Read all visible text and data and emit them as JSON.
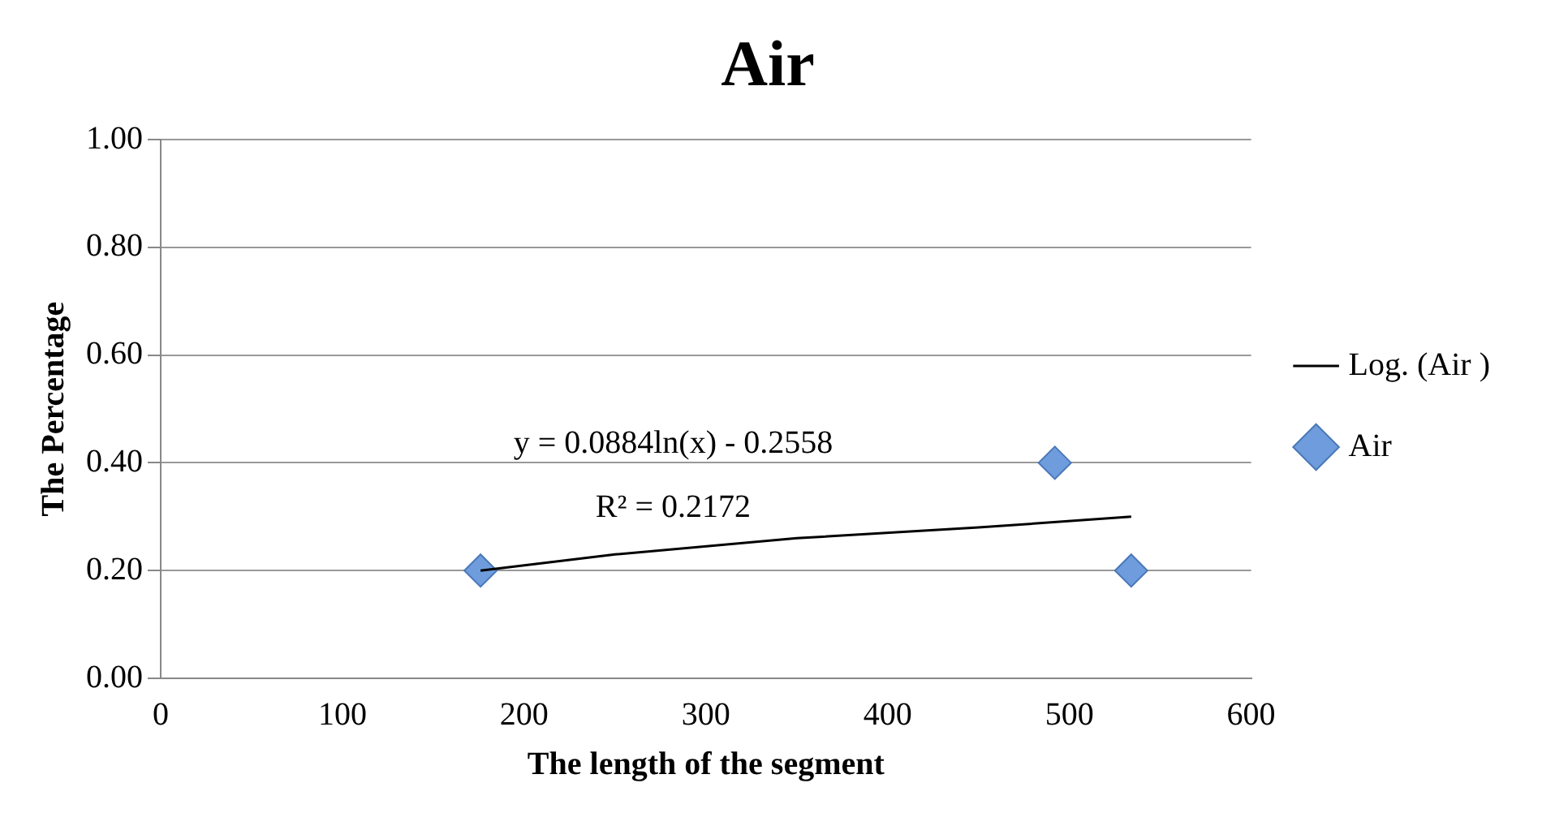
{
  "chart_data": {
    "type": "scatter",
    "title": "Air",
    "xlabel": "The length of the segment",
    "ylabel": "The Percentage",
    "xlim": [
      0,
      600
    ],
    "xticks": [
      0,
      100,
      200,
      300,
      400,
      500,
      600
    ],
    "ylim": [
      0,
      1
    ],
    "yticks": [
      {
        "value": 0,
        "label": "0.00"
      },
      {
        "value": 0.2,
        "label": "0.20"
      },
      {
        "value": 0.4,
        "label": "0.40"
      },
      {
        "value": 0.6,
        "label": "0.60"
      },
      {
        "value": 0.8,
        "label": "0.80"
      },
      {
        "value": 1,
        "label": "1.00"
      }
    ],
    "grid": "y",
    "legend": "right",
    "series": [
      {
        "name": "Air",
        "marker": "diamond",
        "color": "#6f9cdc",
        "x": [
          176,
          492,
          534
        ],
        "values": [
          0.2,
          0.4,
          0.2
        ]
      },
      {
        "name": "Log. (Air )",
        "type": "line",
        "marker": "none",
        "line_style": "solid",
        "color": "#000000",
        "x": [
          176,
          250,
          350,
          450,
          534
        ],
        "values": [
          0.2,
          0.23,
          0.26,
          0.28,
          0.3
        ]
      }
    ],
    "annotations": [
      "y = 0.0884ln(x) - 0.2558",
      "R² = 0.2172"
    ]
  }
}
